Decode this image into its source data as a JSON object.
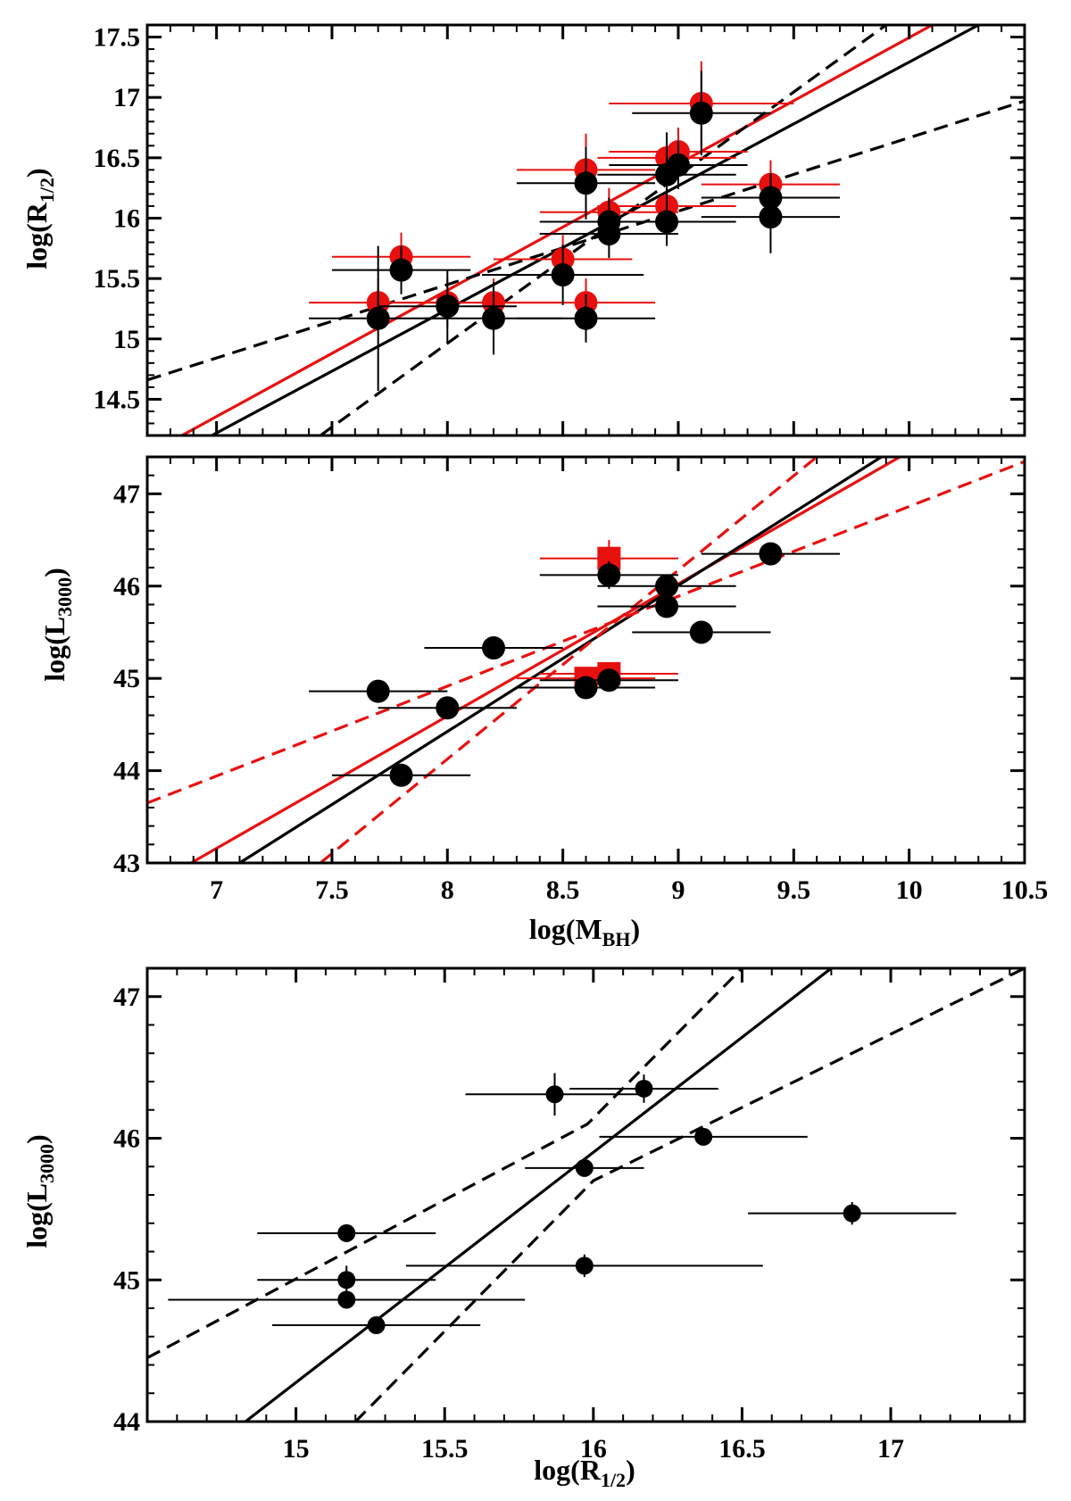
{
  "chart_data": [
    {
      "id": "top",
      "type": "scatter",
      "title": "",
      "xlabel": "",
      "ylabel": {
        "main": "log(R",
        "sub": "1/2",
        "close": ")"
      },
      "xlim": [
        6.7,
        10.5
      ],
      "ylim": [
        14.2,
        17.6
      ],
      "xticks": [
        7,
        7.5,
        8,
        8.5,
        9,
        9.5,
        10,
        10.5
      ],
      "yticks": [
        14.5,
        15,
        15.5,
        16,
        16.5,
        17,
        17.5
      ],
      "ytick_labels": [
        "14.5",
        "15",
        "15.5",
        "16",
        "16.5",
        "17",
        "17.5"
      ],
      "show_x_tick_labels": false,
      "colors": {
        "black": "#000000",
        "red": "#e8100f"
      },
      "series": [
        {
          "name": "red points",
          "color": "#e8100f",
          "marker": "circle",
          "points": [
            {
              "x": 7.7,
              "y": 15.3,
              "xerr": 0.3,
              "yerr": 0.2
            },
            {
              "x": 7.8,
              "y": 15.68,
              "xerr": 0.3,
              "yerr": 0.2
            },
            {
              "x": 8.0,
              "y": 15.3,
              "xerr": 0.3,
              "yerr": 0.2
            },
            {
              "x": 8.2,
              "y": 15.3,
              "xerr": 0.3,
              "yerr": 0.2
            },
            {
              "x": 8.5,
              "y": 15.66,
              "xerr": 0.3,
              "yerr": 0.2
            },
            {
              "x": 8.6,
              "y": 15.3,
              "xerr": 0.3,
              "yerr": 0.2
            },
            {
              "x": 8.6,
              "y": 16.4,
              "xerr": 0.3,
              "yerr": 0.3
            },
            {
              "x": 8.7,
              "y": 16.05,
              "xerr": 0.3,
              "yerr": 0.2
            },
            {
              "x": 8.95,
              "y": 16.5,
              "xerr": 0.3,
              "yerr": 0.2
            },
            {
              "x": 8.95,
              "y": 16.1,
              "xerr": 0.3,
              "yerr": 0.2
            },
            {
              "x": 9.0,
              "y": 16.55,
              "xerr": 0.3,
              "yerr": 0.2
            },
            {
              "x": 9.1,
              "y": 16.95,
              "xerr": 0.4,
              "yerr": 0.35
            },
            {
              "x": 9.4,
              "y": 16.28,
              "xerr": 0.3,
              "yerr": 0.2
            }
          ]
        },
        {
          "name": "black points",
          "color": "#000000",
          "marker": "circle",
          "points": [
            {
              "x": 7.7,
              "y": 15.17,
              "xerr": 0.3,
              "yerr": 0.6
            },
            {
              "x": 7.8,
              "y": 15.57,
              "xerr": 0.3,
              "yerr": 0.2
            },
            {
              "x": 8.0,
              "y": 15.27,
              "xerr": 0.3,
              "yerr": 0.3
            },
            {
              "x": 8.2,
              "y": 15.17,
              "xerr": 0.3,
              "yerr": 0.3
            },
            {
              "x": 8.5,
              "y": 15.53,
              "xerr": 0.35,
              "yerr": 0.25
            },
            {
              "x": 8.6,
              "y": 15.17,
              "xerr": 0.3,
              "yerr": 0.2
            },
            {
              "x": 8.6,
              "y": 16.29,
              "xerr": 0.3,
              "yerr": 0.3
            },
            {
              "x": 8.7,
              "y": 15.97,
              "xerr": 0.3,
              "yerr": 0.2
            },
            {
              "x": 8.7,
              "y": 15.87,
              "xerr": 0.3,
              "yerr": 0.2
            },
            {
              "x": 8.95,
              "y": 15.97,
              "xerr": 0.3,
              "yerr": 0.2
            },
            {
              "x": 8.95,
              "y": 16.36,
              "xerr": 0.3,
              "yerr": 0.35
            },
            {
              "x": 9.0,
              "y": 16.44,
              "xerr": 0.3,
              "yerr": 0.2
            },
            {
              "x": 9.1,
              "y": 16.87,
              "xerr": 0.3,
              "yerr": 0.35
            },
            {
              "x": 9.4,
              "y": 16.17,
              "xerr": 0.3,
              "yerr": 0.2
            },
            {
              "x": 9.4,
              "y": 16.01,
              "xerr": 0.3,
              "yerr": 0.3
            }
          ]
        }
      ],
      "lines": [
        {
          "name": "red fit",
          "color": "#e8100f",
          "style": "solid",
          "from": [
            6.85,
            14.2
          ],
          "to": [
            10.1,
            17.6
          ]
        },
        {
          "name": "black fit",
          "color": "#000000",
          "style": "solid",
          "from": [
            6.98,
            14.2
          ],
          "to": [
            10.3,
            17.6
          ]
        },
        {
          "name": "black bound upper",
          "color": "#000000",
          "style": "dashed",
          "from": [
            6.7,
            14.66
          ],
          "to": [
            10.5,
            16.97
          ]
        },
        {
          "name": "black bound lower",
          "color": "#000000",
          "style": "dashed",
          "from": [
            7.45,
            14.2
          ],
          "to": [
            9.9,
            17.6
          ]
        }
      ]
    },
    {
      "id": "middle",
      "type": "scatter",
      "title": "",
      "xlabel": {
        "main": "log(M",
        "sub": "BH",
        "close": ")"
      },
      "ylabel": {
        "main": "log(L",
        "sub": "3000",
        "close": ")"
      },
      "xlim": [
        6.7,
        10.5
      ],
      "ylim": [
        43,
        47.4
      ],
      "xticks": [
        7,
        7.5,
        8,
        8.5,
        9,
        9.5,
        10,
        10.5
      ],
      "xtick_labels": [
        "7",
        "7.5",
        "8",
        "8.5",
        "9",
        "9.5",
        "10",
        "10.5"
      ],
      "yticks": [
        43,
        44,
        45,
        46,
        47
      ],
      "ytick_labels": [
        "43",
        "44",
        "45",
        "46",
        "47"
      ],
      "show_x_tick_labels": true,
      "series": [
        {
          "name": "red squares",
          "color": "#e8100f",
          "marker": "square",
          "points": [
            {
              "x": 8.7,
              "y": 46.3,
              "xerr": 0.3,
              "yerr": 0.2
            },
            {
              "x": 8.6,
              "y": 45.0,
              "xerr": 0.3,
              "yerr": 0.1
            },
            {
              "x": 8.7,
              "y": 45.05,
              "xerr": 0.3,
              "yerr": 0.1
            }
          ]
        },
        {
          "name": "black points",
          "color": "#000000",
          "marker": "circle",
          "points": [
            {
              "x": 7.7,
              "y": 44.86,
              "xerr": 0.3,
              "yerr": 0.05
            },
            {
              "x": 7.8,
              "y": 43.95,
              "xerr": 0.3,
              "yerr": 0.05
            },
            {
              "x": 8.0,
              "y": 44.68,
              "xerr": 0.3,
              "yerr": 0.05
            },
            {
              "x": 8.2,
              "y": 45.33,
              "xerr": 0.3,
              "yerr": 0.05
            },
            {
              "x": 8.6,
              "y": 44.9,
              "xerr": 0.3,
              "yerr": 0.05
            },
            {
              "x": 8.7,
              "y": 44.98,
              "xerr": 0.3,
              "yerr": 0.05
            },
            {
              "x": 8.7,
              "y": 46.12,
              "xerr": 0.3,
              "yerr": 0.15
            },
            {
              "x": 8.95,
              "y": 46.0,
              "xerr": 0.3,
              "yerr": 0.05
            },
            {
              "x": 8.95,
              "y": 45.78,
              "xerr": 0.3,
              "yerr": 0.05
            },
            {
              "x": 9.1,
              "y": 45.5,
              "xerr": 0.3,
              "yerr": 0.05
            },
            {
              "x": 9.4,
              "y": 46.35,
              "xerr": 0.3,
              "yerr": 0.05
            }
          ]
        }
      ],
      "lines": [
        {
          "name": "red fit",
          "color": "#e8100f",
          "style": "solid",
          "from": [
            6.89,
            43.0
          ],
          "to": [
            9.96,
            47.4
          ]
        },
        {
          "name": "black fit",
          "color": "#000000",
          "style": "solid",
          "from": [
            7.1,
            43.0
          ],
          "to": [
            9.88,
            47.4
          ]
        },
        {
          "name": "red bound upper",
          "color": "#e8100f",
          "style": "dashed",
          "from": [
            6.7,
            43.65
          ],
          "to": [
            10.5,
            47.35
          ]
        },
        {
          "name": "red bound lower",
          "color": "#e8100f",
          "style": "dashed",
          "from": [
            7.45,
            43.0
          ],
          "to": [
            9.6,
            47.4
          ]
        }
      ]
    },
    {
      "id": "bottom",
      "type": "scatter",
      "title": "",
      "xlabel": {
        "main": "log(R",
        "sub": "1/2",
        "close": ")"
      },
      "ylabel": {
        "main": "log(L",
        "sub": "3000",
        "close": ")"
      },
      "xlim": [
        14.5,
        17.45
      ],
      "ylim": [
        44,
        47.2
      ],
      "xticks": [
        15,
        15.5,
        16,
        16.5,
        17
      ],
      "xtick_labels": [
        "15",
        "15.5",
        "16",
        "16.5",
        "17"
      ],
      "yticks": [
        44,
        45,
        46,
        47
      ],
      "ytick_labels": [
        "44",
        "45",
        "46",
        "47"
      ],
      "show_x_tick_labels": true,
      "series": [
        {
          "name": "black points",
          "color": "#000000",
          "marker": "circle",
          "points": [
            {
              "x": 15.17,
              "y": 45.33,
              "xerr": 0.3,
              "yerr": 0.04
            },
            {
              "x": 15.17,
              "y": 45.0,
              "xerr": 0.3,
              "yerr": 0.1
            },
            {
              "x": 15.17,
              "y": 44.86,
              "xerr": 0.6,
              "yerr": 0.04
            },
            {
              "x": 15.27,
              "y": 44.68,
              "xerr": 0.35,
              "yerr": 0.04
            },
            {
              "x": 15.87,
              "y": 46.31,
              "xerr": 0.3,
              "yerr": 0.15
            },
            {
              "x": 15.97,
              "y": 45.1,
              "xerr": 0.6,
              "yerr": 0.08
            },
            {
              "x": 15.97,
              "y": 45.79,
              "xerr": 0.2,
              "yerr": 0.06
            },
            {
              "x": 16.17,
              "y": 46.35,
              "xerr": 0.25,
              "yerr": 0.1
            },
            {
              "x": 16.37,
              "y": 46.01,
              "xerr": 0.35,
              "yerr": 0.06
            },
            {
              "x": 16.87,
              "y": 45.47,
              "xerr": 0.35,
              "yerr": 0.08
            }
          ]
        }
      ],
      "lines": [
        {
          "name": "black fit",
          "color": "#000000",
          "style": "solid",
          "from": [
            14.83,
            44.0
          ],
          "to": [
            16.8,
            47.2
          ]
        },
        {
          "name": "black bound upper",
          "color": "#000000",
          "style": "dashed",
          "from": [
            14.5,
            44.45
          ],
          "to": [
            15.98,
            46.1
          ],
          "to2": [
            16.5,
            47.2
          ]
        },
        {
          "name": "black bound lower",
          "color": "#000000",
          "style": "dashed",
          "from": [
            15.2,
            44.0
          ],
          "to": [
            16.0,
            45.7
          ],
          "to2": [
            17.45,
            47.2
          ]
        }
      ]
    }
  ]
}
